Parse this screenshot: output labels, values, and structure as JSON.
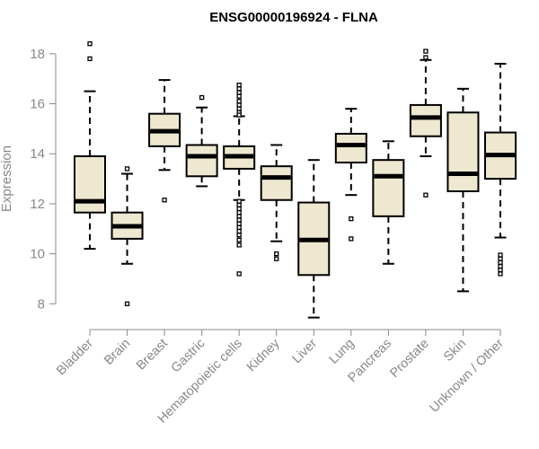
{
  "chart_data": {
    "type": "boxplot",
    "title": "ENSG00000196924 - FLNA",
    "ylabel": "Expression",
    "xlabel": "",
    "ylim": [
      7.4,
      19.0
    ],
    "yticks": [
      8,
      10,
      12,
      14,
      16,
      18
    ],
    "box_color": "#EEE8D0",
    "median_color": "#000000",
    "categories": [
      "Bladder",
      "Brain",
      "Breast",
      "Gastric",
      "Hematopoietic cells",
      "Kidney",
      "Liver",
      "Lung",
      "Pancreas",
      "Prostate",
      "Skin",
      "Unknown / Other"
    ],
    "boxes": [
      {
        "name": "Bladder",
        "whisker_low": 10.2,
        "q1": 11.65,
        "median": 12.1,
        "q3": 13.9,
        "whisker_high": 16.5,
        "outliers": [
          17.8,
          18.4
        ]
      },
      {
        "name": "Brain",
        "whisker_low": 9.6,
        "q1": 10.6,
        "median": 11.1,
        "q3": 11.65,
        "whisker_high": 13.2,
        "outliers": [
          13.4,
          8.0
        ]
      },
      {
        "name": "Breast",
        "whisker_low": 13.35,
        "q1": 14.3,
        "median": 14.9,
        "q3": 15.6,
        "whisker_high": 16.95,
        "outliers": [
          12.15
        ]
      },
      {
        "name": "Gastric",
        "whisker_low": 12.7,
        "q1": 13.1,
        "median": 13.9,
        "q3": 14.35,
        "whisker_high": 15.85,
        "outliers": [
          16.25
        ]
      },
      {
        "name": "Hematopoietic cells",
        "whisker_low": 12.15,
        "q1": 13.4,
        "median": 13.9,
        "q3": 14.3,
        "whisker_high": 15.5,
        "outliers": [
          16.75,
          16.6,
          16.45,
          16.3,
          16.1,
          15.95,
          15.8,
          15.65,
          15.55,
          12.1,
          11.95,
          11.8,
          11.65,
          11.5,
          11.35,
          11.2,
          11.05,
          10.9,
          10.75,
          10.55,
          10.35,
          9.2
        ]
      },
      {
        "name": "Kidney",
        "whisker_low": 10.5,
        "q1": 12.15,
        "median": 13.05,
        "q3": 13.5,
        "whisker_high": 14.35,
        "outliers": [
          10.0,
          9.8
        ]
      },
      {
        "name": "Liver",
        "whisker_low": 7.45,
        "q1": 9.15,
        "median": 10.55,
        "q3": 12.05,
        "whisker_high": 13.75,
        "outliers": []
      },
      {
        "name": "Lung",
        "whisker_low": 12.35,
        "q1": 13.65,
        "median": 14.35,
        "q3": 14.8,
        "whisker_high": 15.8,
        "outliers": [
          11.4,
          10.6
        ]
      },
      {
        "name": "Pancreas",
        "whisker_low": 9.6,
        "q1": 11.5,
        "median": 13.1,
        "q3": 13.75,
        "whisker_high": 14.5,
        "outliers": []
      },
      {
        "name": "Prostate",
        "whisker_low": 13.9,
        "q1": 14.7,
        "median": 15.45,
        "q3": 15.95,
        "whisker_high": 17.75,
        "outliers": [
          18.1,
          17.85,
          12.35
        ]
      },
      {
        "name": "Skin",
        "whisker_low": 8.5,
        "q1": 12.5,
        "median": 13.2,
        "q3": 15.65,
        "whisker_high": 16.6,
        "outliers": []
      },
      {
        "name": "Unknown / Other",
        "whisker_low": 10.65,
        "q1": 13.0,
        "median": 13.95,
        "q3": 14.85,
        "whisker_high": 17.6,
        "outliers": [
          9.95,
          9.8,
          9.65,
          9.5,
          9.35,
          9.2
        ]
      }
    ]
  }
}
